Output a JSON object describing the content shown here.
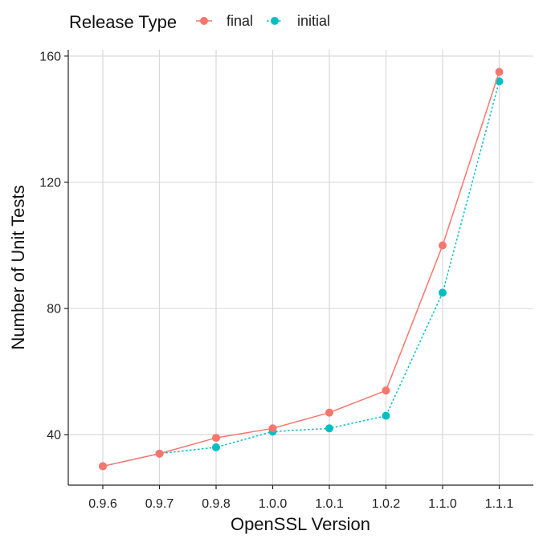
{
  "chart_data": {
    "type": "line",
    "title": "",
    "xlabel": "OpenSSL Version",
    "ylabel": "Number of Unit Tests",
    "categories": [
      "0.9.6",
      "0.9.7",
      "0.9.8",
      "1.0.0",
      "1.0.1",
      "1.0.2",
      "1.1.0",
      "1.1.1"
    ],
    "ylim": [
      24,
      162
    ],
    "yticks": [
      40,
      80,
      120,
      160
    ],
    "grid": true,
    "legend": {
      "title": "Release Type",
      "position": "top-left"
    },
    "series": [
      {
        "name": "final",
        "color": "#F8766D",
        "dash": "solid",
        "values": [
          30,
          34,
          39,
          42,
          47,
          54,
          100,
          155
        ]
      },
      {
        "name": "initial",
        "color": "#00BFC4",
        "dash": "dotted",
        "values": [
          30,
          34,
          36,
          41,
          42,
          46,
          85,
          152
        ]
      }
    ]
  }
}
